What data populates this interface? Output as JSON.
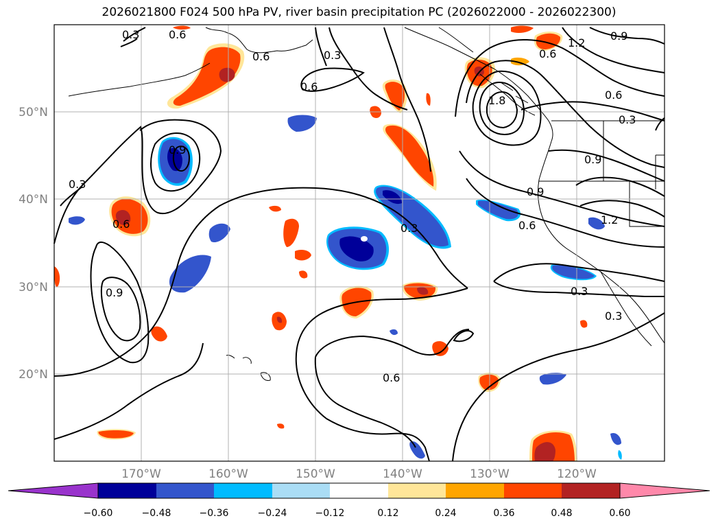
{
  "title": "2026021800 F024 500 hPa PV, river basin precipitation PC (2026022000 - 2026022300)",
  "map": {
    "lat_labels": [
      "50°N",
      "40°N",
      "30°N",
      "20°N"
    ],
    "lon_labels": [
      "170°W",
      "160°W",
      "150°W",
      "140°W",
      "130°W",
      "120°W"
    ],
    "contour_labels": [
      "0.3",
      "0.6",
      "0.6",
      "0.3",
      "0.6",
      "1.2",
      "0.9",
      "1.8",
      "0.6",
      "0.3",
      "0.9",
      "0.9",
      "0.6",
      "1.2",
      "0.3",
      "0.3",
      "0.9",
      "0.6",
      "0.3",
      "0.6",
      "0.9",
      "0.3",
      "0.6"
    ]
  },
  "colorbar": {
    "ticks": [
      "−0.60",
      "−0.48",
      "−0.36",
      "−0.24",
      "−0.12",
      "0.12",
      "0.24",
      "0.36",
      "0.48",
      "0.60"
    ],
    "colors": [
      "#9933cc",
      "#000099",
      "#3355cc",
      "#00bbff",
      "#aaddf5",
      "#ffffff",
      "#ffe699",
      "#ffa500",
      "#ff4500",
      "#b22222",
      "#ff88aa"
    ]
  },
  "colors": {
    "strong_negative": "#000099",
    "negative": "#3355cc",
    "weak_negative": "#00bbff",
    "weak_positive": "#ffe699",
    "positive": "#ff4500",
    "strong_positive": "#b22222"
  }
}
